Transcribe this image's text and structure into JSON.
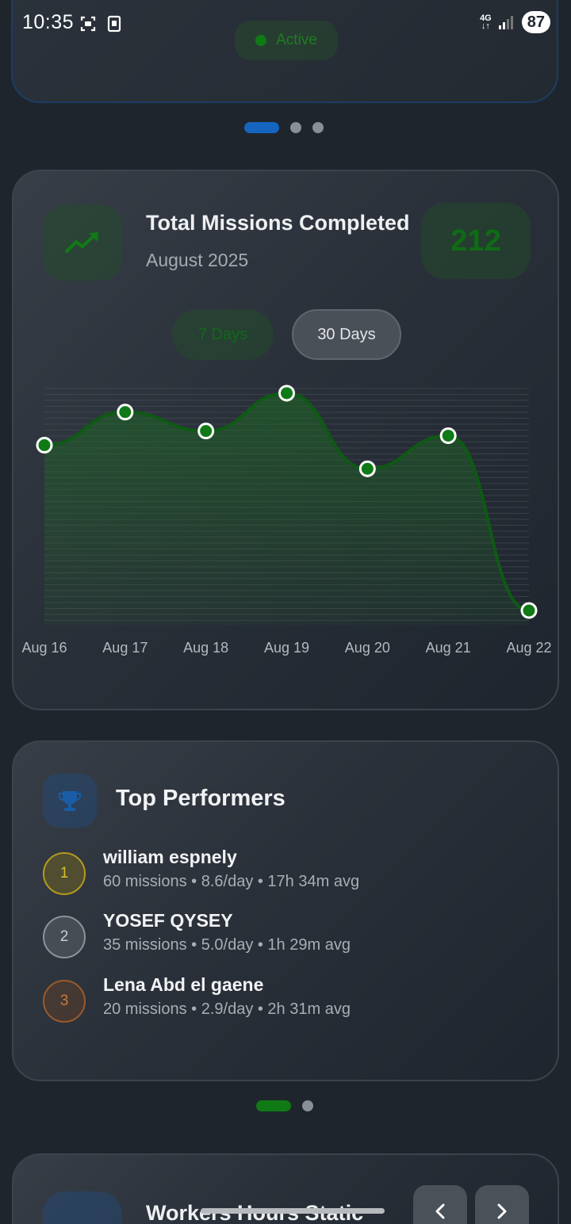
{
  "status_bar": {
    "time": "10:35",
    "network": "4G",
    "battery": "87"
  },
  "top_card": {
    "status_label": "Active"
  },
  "missions": {
    "title": "Total Missions Completed",
    "subtitle": "August 2025",
    "count": "212",
    "range_options": [
      "7 Days",
      "30 Days"
    ],
    "selected_range": "30 Days",
    "accent_color": "#0f7a16"
  },
  "chart_data": {
    "type": "area",
    "categories": [
      "Aug 16",
      "Aug 17",
      "Aug 18",
      "Aug 19",
      "Aug 20",
      "Aug 21",
      "Aug 22"
    ],
    "values": [
      38,
      45,
      41,
      49,
      33,
      40,
      3
    ],
    "ylim": [
      0,
      50
    ],
    "grid": true,
    "title": "",
    "xlabel": "",
    "ylabel": ""
  },
  "performers": {
    "title": "Top Performers",
    "items": [
      {
        "rank": "1",
        "name": "william espnely",
        "stats": "60 missions • 8.6/day • 17h 34m avg"
      },
      {
        "rank": "2",
        "name": "YOSEF QYSEY",
        "stats": "35 missions • 5.0/day • 1h 29m avg"
      },
      {
        "rank": "3",
        "name": "Lena Abd el gaene",
        "stats": "20 missions • 2.9/day • 2h 31m avg"
      }
    ]
  },
  "hours": {
    "title": "Workers Hours Static"
  }
}
